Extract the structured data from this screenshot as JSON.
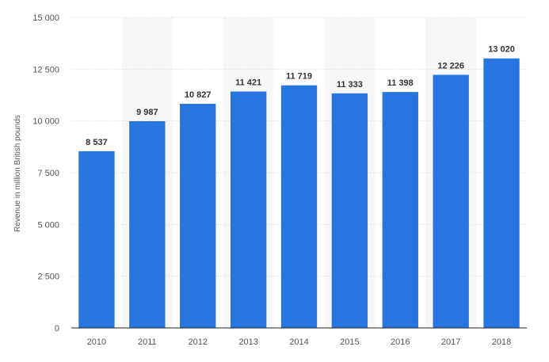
{
  "chart_data": {
    "type": "bar",
    "categories": [
      "2010",
      "2011",
      "2012",
      "2013",
      "2014",
      "2015",
      "2016",
      "2017",
      "2018"
    ],
    "values": [
      8537,
      9987,
      10827,
      11421,
      11719,
      11333,
      11398,
      12226,
      13020
    ],
    "value_labels": [
      "8 537",
      "9 987",
      "10 827",
      "11 421",
      "11 719",
      "11 333",
      "11 398",
      "12 226",
      "13 020"
    ],
    "title": "",
    "xlabel": "",
    "ylabel": "Revenue in million British pounds",
    "ylim": [
      0,
      15000
    ],
    "yticks": [
      0,
      2500,
      5000,
      7500,
      10000,
      12500,
      15000
    ],
    "ytick_labels": [
      "0",
      "2 500",
      "5 000",
      "7 500",
      "10 000",
      "12 500",
      "15 000"
    ],
    "grid": true,
    "legend": "none",
    "colors": {
      "bar": "#2775de",
      "grid": "#d6d6d6",
      "band": "#f7f7f7",
      "axis": "#222222"
    }
  }
}
